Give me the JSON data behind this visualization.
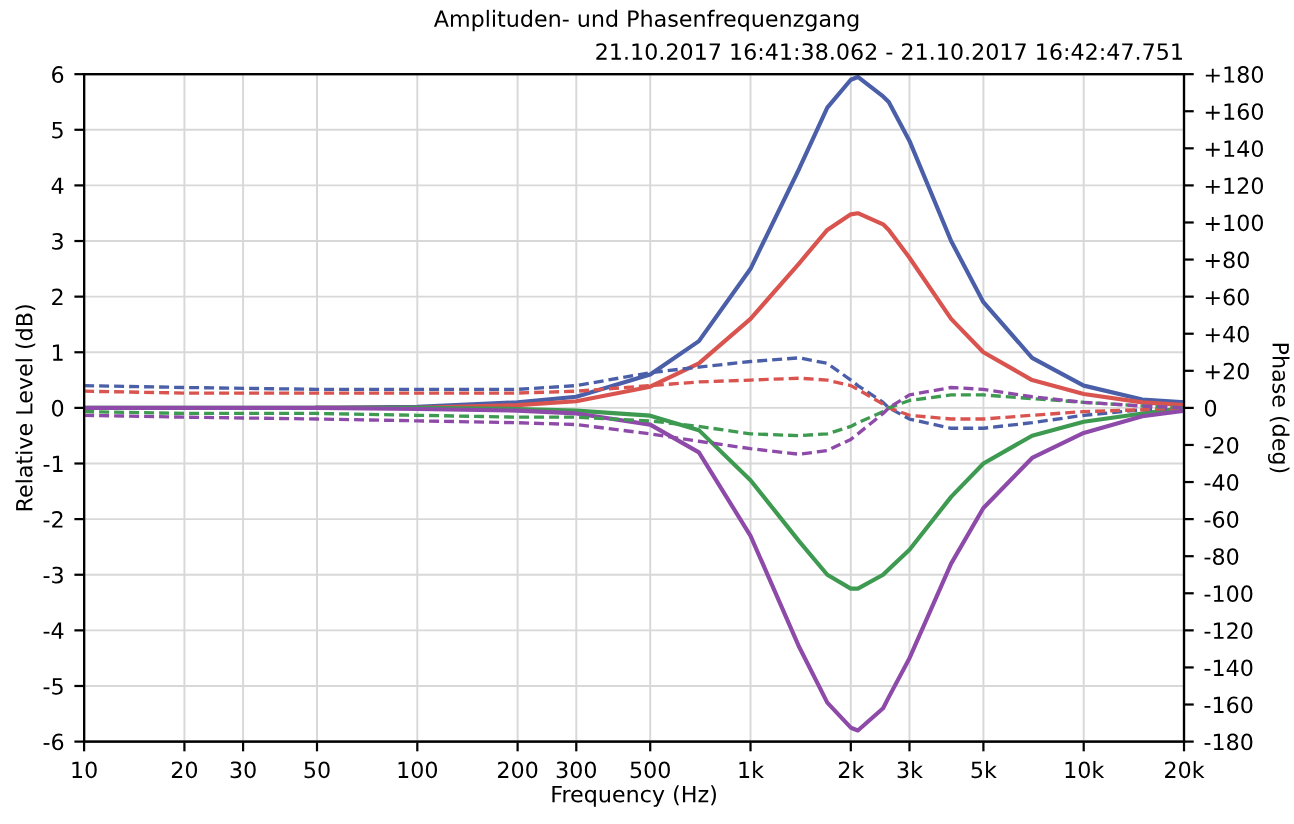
{
  "chart_data": {
    "type": "line",
    "title": "Amplituden- und Phasenfrequenzgang",
    "subtitle": "21.10.2017 16:41:38.062 - 21.10.2017 16:42:47.751",
    "xlabel": "Frequency (Hz)",
    "ylabel": "Relative Level (dB)",
    "y2label": "Phase (deg)",
    "log": "x",
    "grid": true,
    "marker": "none",
    "x": [
      10,
      20,
      50,
      100,
      200,
      300,
      500,
      700,
      1000,
      1400,
      1700,
      2000,
      2100,
      2500,
      2600,
      3000,
      4000,
      5000,
      7000,
      10000,
      15000,
      20000
    ],
    "series": [
      {
        "color": "#4a5fa8",
        "line_style": "solid",
        "values": [
          null,
          null,
          0,
          0.02,
          0.1,
          0.2,
          0.6,
          1.2,
          2.5,
          4.3,
          5.4,
          5.9,
          5.95,
          5.6,
          5.5,
          4.8,
          3.0,
          1.9,
          0.9,
          0.4,
          0.15,
          0.1
        ]
      },
      {
        "color": "#d9534f",
        "line_style": "solid",
        "values": [
          null,
          null,
          0,
          0,
          0.05,
          0.12,
          0.38,
          0.8,
          1.6,
          2.6,
          3.2,
          3.48,
          3.5,
          3.3,
          3.2,
          2.7,
          1.6,
          1.0,
          0.5,
          0.25,
          0.1,
          0.05
        ]
      },
      {
        "color": "#3d9a50",
        "line_style": "solid",
        "values": [
          0,
          0,
          0,
          0,
          -0.02,
          -0.05,
          -0.14,
          -0.4,
          -1.3,
          -2.4,
          -3.0,
          -3.25,
          -3.25,
          -3.0,
          -2.9,
          -2.55,
          -1.6,
          -1.0,
          -0.5,
          -0.25,
          -0.1,
          0
        ]
      },
      {
        "color": "#8e4aa8",
        "line_style": "solid",
        "values": [
          0,
          0,
          0,
          -0.02,
          -0.05,
          -0.1,
          -0.3,
          -0.8,
          -2.3,
          -4.3,
          -5.3,
          -5.75,
          -5.8,
          -5.4,
          -5.2,
          -4.5,
          -2.8,
          -1.8,
          -0.9,
          -0.45,
          -0.15,
          -0.05
        ]
      },
      {
        "color": "#4a5fa8",
        "line_style": "dashed",
        "axis": "y2",
        "values": [
          12,
          11,
          10,
          10,
          10,
          12,
          19,
          22,
          25,
          27,
          24,
          15,
          12,
          3,
          0,
          -6,
          -11,
          -11,
          -8,
          -4,
          -1,
          0
        ]
      },
      {
        "color": "#d9534f",
        "line_style": "dashed",
        "axis": "y2",
        "values": [
          9,
          8,
          8,
          8,
          8,
          9,
          12,
          14,
          15,
          16,
          15,
          12,
          10,
          2,
          0,
          -4,
          -6,
          -6,
          -4,
          -2,
          -1,
          0
        ]
      },
      {
        "color": "#3d9a50",
        "line_style": "dashed",
        "axis": "y2",
        "values": [
          -2,
          -3,
          -3,
          -4,
          -5,
          -5,
          -7,
          -10,
          -14,
          -15,
          -14,
          -10,
          -8,
          -2,
          0,
          4,
          7,
          7,
          5,
          3,
          1,
          0
        ]
      },
      {
        "color": "#8e4aa8",
        "line_style": "dashed",
        "axis": "y2",
        "values": [
          -4,
          -5,
          -6,
          -7,
          -8,
          -9,
          -14,
          -18,
          -22,
          -25,
          -23,
          -17,
          -14,
          -3,
          0,
          7,
          11,
          10,
          6,
          3,
          1,
          0
        ]
      }
    ],
    "xlim": [
      10,
      20000
    ],
    "xticks": [
      10,
      20,
      30,
      50,
      100,
      200,
      300,
      500,
      {
        "value": 1000,
        "label": "1k"
      },
      {
        "value": 2000,
        "label": "2k"
      },
      {
        "value": 3000,
        "label": "3k"
      },
      {
        "value": 5000,
        "label": "5k"
      },
      {
        "value": 10000,
        "label": "10k"
      },
      {
        "value": 20000,
        "label": "20k"
      }
    ],
    "ylim": [
      -6,
      6
    ],
    "yticks": [
      -6,
      -5,
      -4,
      -3,
      -2,
      -1,
      0,
      1,
      2,
      3,
      4,
      5,
      6
    ],
    "y2lim": [
      -180,
      180
    ],
    "y2ticks": [
      -180,
      -160,
      -140,
      -120,
      -100,
      -80,
      -60,
      -40,
      -20,
      0,
      {
        "value": 20,
        "label": "+20"
      },
      {
        "value": 40,
        "label": "+40"
      },
      {
        "value": 60,
        "label": "+60"
      },
      {
        "value": 80,
        "label": "+80"
      },
      {
        "value": 100,
        "label": "+100"
      },
      {
        "value": 120,
        "label": "+120"
      },
      {
        "value": 140,
        "label": "+140"
      },
      {
        "value": 160,
        "label": "+160"
      },
      {
        "value": 180,
        "label": "+180"
      }
    ]
  }
}
